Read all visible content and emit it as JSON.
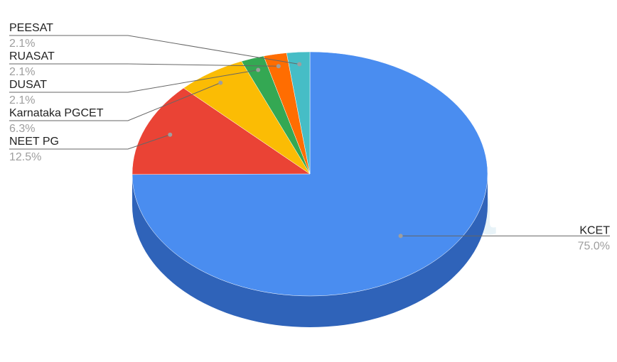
{
  "chart_data": {
    "type": "pie",
    "style": "3d",
    "title": "",
    "start": "top, clockwise",
    "slices": [
      {
        "label": "KCET",
        "value": 75.0,
        "value_label": "75.0%",
        "color": "#4a8df0",
        "side_color": "#2f63b9"
      },
      {
        "label": "NEET PG",
        "value": 12.5,
        "value_label": "12.5%",
        "color": "#ea4335"
      },
      {
        "label": "Karnataka PGCET",
        "value": 6.3,
        "value_label": "6.3%",
        "color": "#fbbc04"
      },
      {
        "label": "DUSAT",
        "value": 2.1,
        "value_label": "2.1%",
        "color": "#34a853"
      },
      {
        "label": "RUASAT",
        "value": 2.1,
        "value_label": "2.1%",
        "color": "#ff6d01"
      },
      {
        "label": "PEESAT",
        "value": 2.1,
        "value_label": "2.1%",
        "color": "#46bdc6"
      }
    ],
    "legend": "none (leader-line labels)"
  },
  "watermark": "shiksha"
}
